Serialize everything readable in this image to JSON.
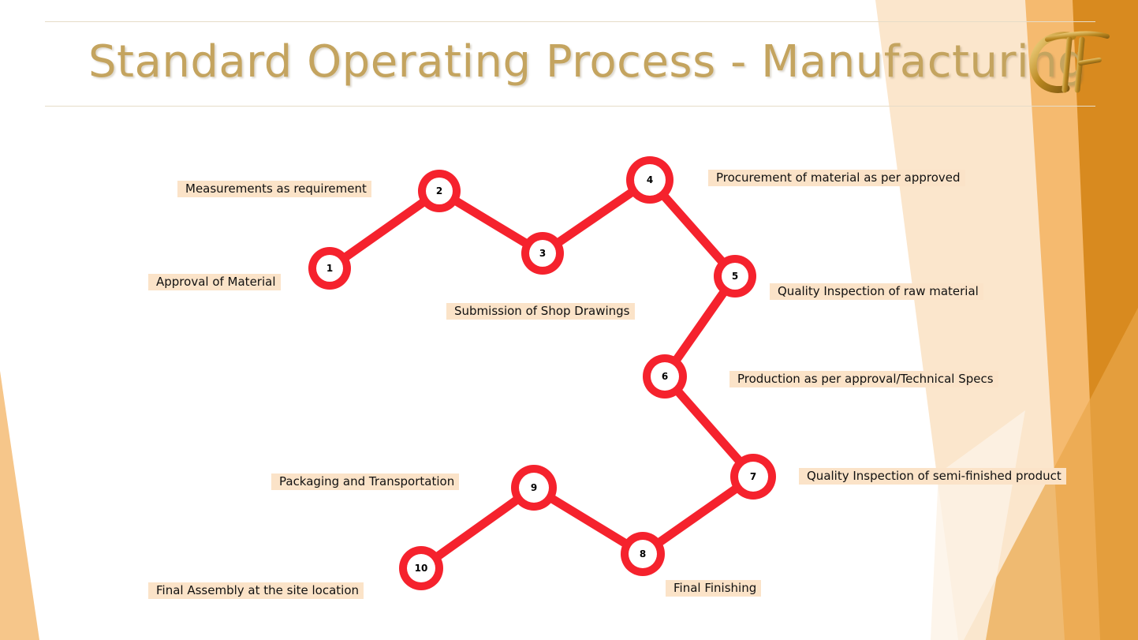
{
  "slide": {
    "title": "Standard Operating Process - Manufacturing",
    "logo_icon": "gold-monogram-logo",
    "colors": {
      "title": "#c4a45f",
      "path": "#f5222d",
      "label_bg": "#fbe3c8",
      "accent_dark": "#d48a1e",
      "accent_light": "#f7c98f"
    }
  },
  "steps": [
    {
      "num": "1",
      "label": "Approval of Material"
    },
    {
      "num": "2",
      "label": "Measurements as requirement"
    },
    {
      "num": "3",
      "label": "Submission of Shop Drawings"
    },
    {
      "num": "4",
      "label": "Procurement of material as per approved"
    },
    {
      "num": "5",
      "label": "Quality Inspection of raw material"
    },
    {
      "num": "6",
      "label": "Production as per approval/Technical Specs"
    },
    {
      "num": "7",
      "label": "Quality Inspection of semi-finished product"
    },
    {
      "num": "8",
      "label": "Final Finishing"
    },
    {
      "num": "9",
      "label": "Packaging and Transportation"
    },
    {
      "num": "10",
      "label": "Final Assembly at the site location"
    }
  ]
}
